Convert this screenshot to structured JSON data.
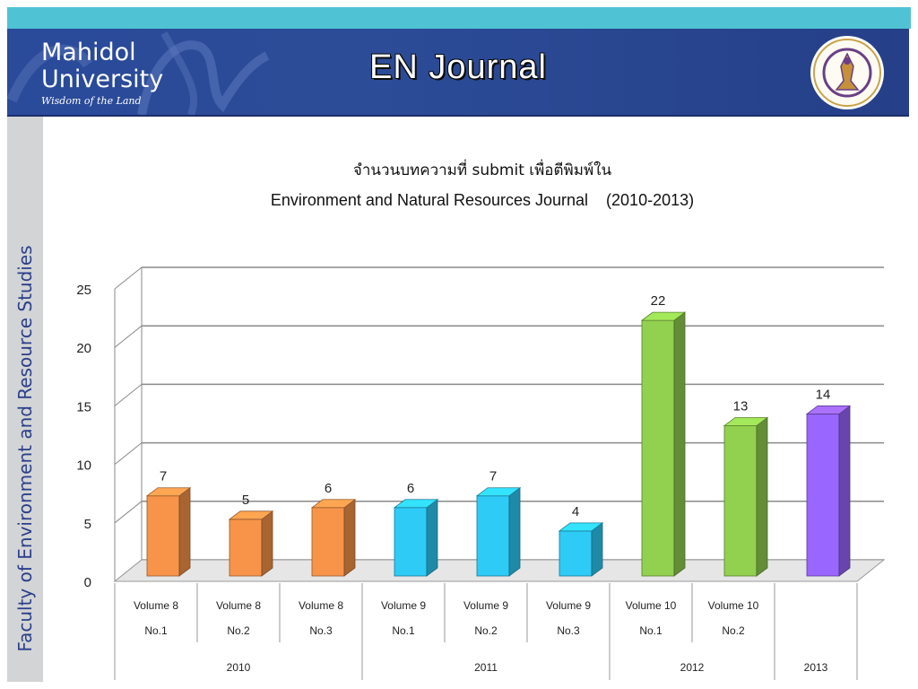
{
  "header": {
    "logo_line1": "Mahidol",
    "logo_line2": "University",
    "logo_tagline": "Wisdom of the Land",
    "title": "EN Journal"
  },
  "sidebar": {
    "label": "Faculty of Environment and Resource Studies"
  },
  "colors": {
    "teal_strip": "#4fc3d4",
    "banner": "#2a4a9a",
    "orange": "#f7944a",
    "cyan": "#2ecbf7",
    "green": "#92d050",
    "purple": "#9966ff"
  },
  "chart_data": {
    "type": "bar",
    "title": "จำนวนบทความที่ submit เพื่อตีพิมพ์ใน",
    "subtitle": "Environment and Natural Resources Journal    (2010-2013)",
    "ylim": [
      0,
      25
    ],
    "yticks": [
      "0",
      "5",
      "10",
      "15",
      "20",
      "25"
    ],
    "grid": true,
    "categories": [
      {
        "line1": "Volume 8",
        "line2": "No.1"
      },
      {
        "line1": "Volume 8",
        "line2": "No.2"
      },
      {
        "line1": "Volume 8",
        "line2": "No.3"
      },
      {
        "line1": "Volume 9",
        "line2": "No.1"
      },
      {
        "line1": "Volume 9",
        "line2": "No.2"
      },
      {
        "line1": "Volume 9",
        "line2": "No.3"
      },
      {
        "line1": "Volume 10",
        "line2": "No.1"
      },
      {
        "line1": "Volume 10",
        "line2": "No.2"
      },
      {
        "line1": "",
        "line2": ""
      }
    ],
    "values": [
      7,
      5,
      6,
      6,
      7,
      4,
      22,
      13,
      14
    ],
    "bar_colors": [
      "orange",
      "orange",
      "orange",
      "cyan",
      "cyan",
      "cyan",
      "green",
      "green",
      "purple"
    ],
    "groups": [
      {
        "label": "2010",
        "count": 3
      },
      {
        "label": "2011",
        "count": 3
      },
      {
        "label": "2012",
        "count": 2
      },
      {
        "label": "2013",
        "count": 1
      }
    ]
  }
}
